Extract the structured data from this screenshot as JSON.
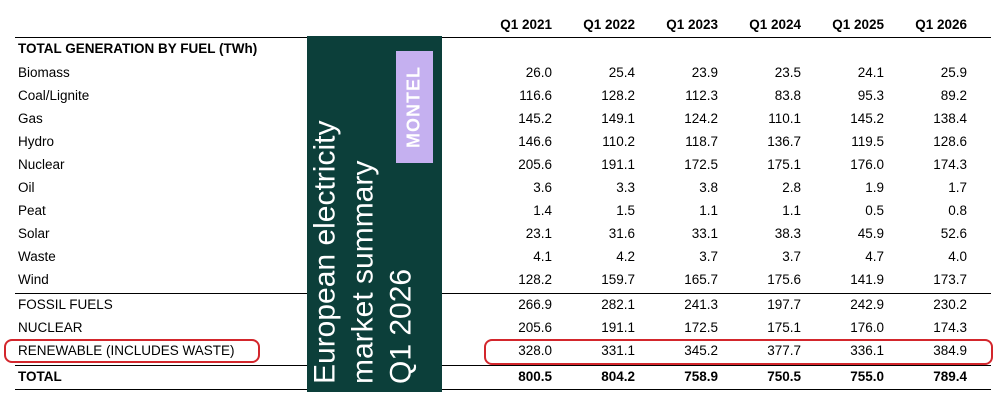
{
  "table": {
    "years": [
      "Q1 2021",
      "Q1 2022",
      "Q1 2023",
      "Q1 2024",
      "Q1 2025",
      "Q1 2026"
    ],
    "section_title": "TOTAL GENERATION BY FUEL (TWh)",
    "rows": [
      {
        "label": "Biomass",
        "values": [
          "26.0",
          "25.4",
          "23.9",
          "23.5",
          "24.1",
          "25.9"
        ]
      },
      {
        "label": "Coal/Lignite",
        "values": [
          "116.6",
          "128.2",
          "112.3",
          "83.8",
          "95.3",
          "89.2"
        ]
      },
      {
        "label": "Gas",
        "values": [
          "145.2",
          "149.1",
          "124.2",
          "110.1",
          "145.2",
          "138.4"
        ]
      },
      {
        "label": "Hydro",
        "values": [
          "146.6",
          "110.2",
          "118.7",
          "136.7",
          "119.5",
          "128.6"
        ]
      },
      {
        "label": "Nuclear",
        "values": [
          "205.6",
          "191.1",
          "172.5",
          "175.1",
          "176.0",
          "174.3"
        ]
      },
      {
        "label": "Oil",
        "values": [
          "3.6",
          "3.3",
          "3.8",
          "2.8",
          "1.9",
          "1.7"
        ]
      },
      {
        "label": "Peat",
        "values": [
          "1.4",
          "1.5",
          "1.1",
          "1.1",
          "0.5",
          "0.8"
        ]
      },
      {
        "label": "Solar",
        "values": [
          "23.1",
          "31.6",
          "33.1",
          "38.3",
          "45.9",
          "52.6"
        ]
      },
      {
        "label": "Waste",
        "values": [
          "4.1",
          "4.2",
          "3.7",
          "3.7",
          "4.7",
          "4.0"
        ]
      },
      {
        "label": "Wind",
        "values": [
          "128.2",
          "159.7",
          "165.7",
          "175.6",
          "141.9",
          "173.7"
        ]
      }
    ],
    "summary": [
      {
        "label": "FOSSIL FUELS",
        "values": [
          "266.9",
          "282.1",
          "241.3",
          "197.7",
          "242.9",
          "230.2"
        ]
      },
      {
        "label": "NUCLEAR",
        "values": [
          "205.6",
          "191.1",
          "172.5",
          "175.1",
          "176.0",
          "174.3"
        ]
      },
      {
        "label": "RENEWABLE (INCLUDES WASTE)",
        "values": [
          "328.0",
          "331.1",
          "345.2",
          "377.7",
          "336.1",
          "384.9"
        ],
        "highlighted": true
      }
    ],
    "total": {
      "label": "TOTAL",
      "values": [
        "800.5",
        "804.2",
        "758.9",
        "750.5",
        "755.0",
        "789.4"
      ]
    }
  },
  "overlay": {
    "lines": [
      "European electricity",
      "market summary",
      "Q1 2026"
    ],
    "brand": "MONTEL",
    "background_color": "#0c3f3a",
    "brand_color": "#c5b0f0"
  },
  "highlight_color": "#d3262c"
}
